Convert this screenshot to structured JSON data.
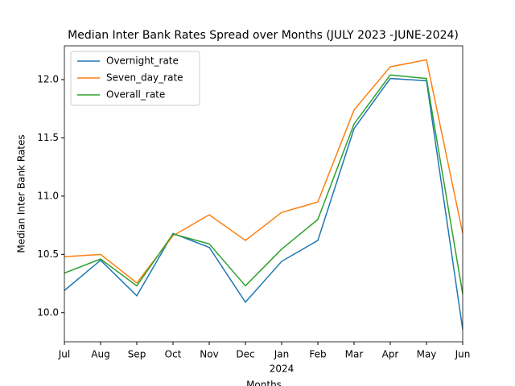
{
  "chart_data": {
    "type": "line",
    "title": "Median Inter Bank Rates Spread over Months (JULY 2023 -JUNE-2024)",
    "x_label": "Months",
    "y_label": "Median Inter Bank Rates",
    "categories": [
      "Jul",
      "Aug",
      "Sep",
      "Oct",
      "Nov",
      "Dec",
      "Jan",
      "Feb",
      "Mar",
      "Apr",
      "May",
      "Jun"
    ],
    "x_year_label": {
      "label": "2024",
      "category": "Jan"
    },
    "series": [
      {
        "name": "Overnight_rate",
        "color": "#1f77b4",
        "values": [
          10.19,
          10.45,
          10.145,
          10.68,
          10.56,
          10.09,
          10.44,
          10.62,
          11.58,
          12.01,
          11.99,
          9.855
        ]
      },
      {
        "name": "Seven_day_rate",
        "color": "#ff7f0e",
        "values": [
          10.48,
          10.5,
          10.255,
          10.66,
          10.84,
          10.62,
          10.86,
          10.95,
          11.74,
          12.11,
          12.17,
          10.68
        ]
      },
      {
        "name": "Overall_rate",
        "color": "#2ca02c",
        "values": [
          10.34,
          10.46,
          10.23,
          10.675,
          10.59,
          10.23,
          10.545,
          10.8,
          11.62,
          12.04,
          12.01,
          10.16
        ]
      }
    ],
    "ylim": [
      9.75,
      12.29
    ],
    "yticks": [
      {
        "value": 10,
        "label": "10.0"
      },
      10.5,
      {
        "value": 11,
        "label": "11.0"
      },
      11.5,
      {
        "value": 12,
        "label": "12.0"
      }
    ],
    "legend": "upper left",
    "grid": false
  }
}
